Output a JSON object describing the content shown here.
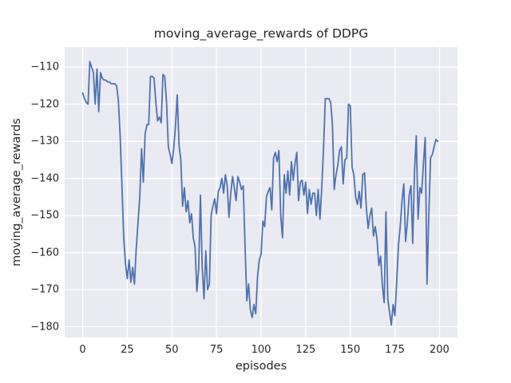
{
  "figure": {
    "background": "#FFFFFF"
  },
  "axes": {
    "background": "#EAEAF2",
    "grid_color": "#FFFFFF",
    "text_color": "#262626"
  },
  "chart_data": {
    "type": "line",
    "title": "moving_average_rewards of DDPG",
    "xlabel": "episodes",
    "ylabel": "moving_average_rewards",
    "x_ticks": [
      0,
      25,
      50,
      75,
      100,
      125,
      150,
      175,
      200
    ],
    "y_ticks": [
      -110,
      -120,
      -130,
      -140,
      -150,
      -160,
      -170,
      -180
    ],
    "xlim": [
      -10.1,
      210.1
    ],
    "ylim": [
      -182.9,
      -104.6
    ],
    "grid": true,
    "legend": false,
    "series": [
      {
        "name": "moving_average_rewards",
        "color": "#4C72B0",
        "line_width": 1.8,
        "x_start": 0,
        "x_step": 1,
        "values": [
          -117,
          -118.5,
          -119.5,
          -120,
          -108.5,
          -110,
          -111.5,
          -120,
          -110.5,
          -122,
          -111.5,
          -113,
          -113.5,
          -113.5,
          -114,
          -114,
          -114.5,
          -114.5,
          -114.5,
          -115,
          -119,
          -128.5,
          -142,
          -156,
          -163,
          -167,
          -162,
          -168,
          -164,
          -168.5,
          -159,
          -152,
          -145,
          -132,
          -141,
          -128,
          -125.5,
          -125.5,
          -112.5,
          -112.5,
          -113,
          -119.5,
          -124.5,
          -123.5,
          -125,
          -112,
          -112.5,
          -119.5,
          -131.5,
          -133.5,
          -136,
          -132,
          -126,
          -117.5,
          -131,
          -135,
          -147.5,
          -142.5,
          -149,
          -146,
          -152,
          -149.5,
          -156,
          -158.5,
          -170.5,
          -164.5,
          -144.5,
          -164,
          -172.5,
          -159.5,
          -170,
          -168.5,
          -150,
          -147.5,
          -145.5,
          -149.5,
          -143.5,
          -142.5,
          -140,
          -144,
          -139,
          -142,
          -150.5,
          -144,
          -139.5,
          -142.5,
          -146,
          -139.5,
          -141,
          -143,
          -142,
          -158,
          -173,
          -168.5,
          -175.5,
          -177.5,
          -174,
          -176.5,
          -166.5,
          -162,
          -160.5,
          -151.5,
          -153,
          -145,
          -143.5,
          -142.5,
          -148.5,
          -134.5,
          -133,
          -135.5,
          -132.5,
          -150,
          -156,
          -139,
          -144,
          -138,
          -144.5,
          -135.5,
          -140.5,
          -136,
          -133,
          -146,
          -141,
          -140.5,
          -144.5,
          -141,
          -149.5,
          -143,
          -147,
          -144,
          -144,
          -150,
          -143,
          -151,
          -142.5,
          -132,
          -118.5,
          -118.5,
          -118.5,
          -119.5,
          -125.5,
          -143,
          -139,
          -136.5,
          -132.5,
          -131.5,
          -141.5,
          -135,
          -134.5,
          -120,
          -120.5,
          -137,
          -139,
          -145,
          -147,
          -143.5,
          -148,
          -139,
          -138.5,
          -148,
          -153.5,
          -150,
          -148,
          -155.5,
          -153,
          -156.5,
          -163.5,
          -161,
          -169,
          -173.5,
          -149,
          -172.5,
          -176,
          -179.5,
          -174,
          -177,
          -168,
          -158,
          -153,
          -146,
          -141.5,
          -157,
          -152,
          -144.5,
          -142,
          -157.5,
          -138,
          -128.5,
          -151,
          -142.5,
          -144,
          -136,
          -129,
          -168.5,
          -150,
          -134.5,
          -133.5,
          -131.5,
          -129.5,
          -130
        ]
      }
    ]
  }
}
